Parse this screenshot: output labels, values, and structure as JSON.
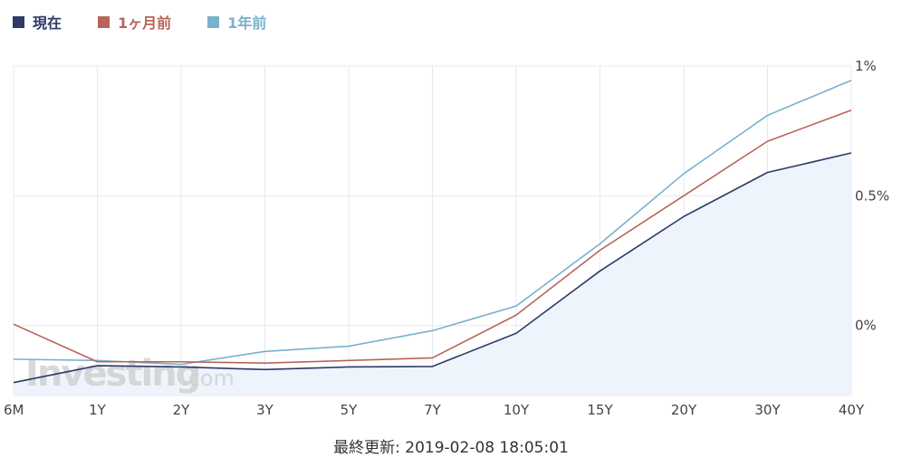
{
  "legend": {
    "items": [
      {
        "label": "現在",
        "color": "#2f3a66"
      },
      {
        "label": "1ヶ月前",
        "color": "#b8645a"
      },
      {
        "label": "1年前",
        "color": "#7ab0cc"
      }
    ]
  },
  "watermark": {
    "brand": "Investing",
    "suffix": ".com"
  },
  "footer": {
    "text": "最終更新: 2019-02-08 18:05:01"
  },
  "chart_data": {
    "type": "line",
    "categories": [
      "6M",
      "1Y",
      "2Y",
      "3Y",
      "5Y",
      "7Y",
      "10Y",
      "15Y",
      "20Y",
      "30Y",
      "40Y"
    ],
    "y_ticks": [
      "1%",
      "0.5%",
      "0%"
    ],
    "ylim": [
      -0.27,
      1.0
    ],
    "grid": true,
    "legend_position": "top-left",
    "series": [
      {
        "name": "現在",
        "color": "#2f3a66",
        "filled": true,
        "fill_color": "#eef4fc",
        "values": [
          -0.22,
          -0.155,
          -0.16,
          -0.17,
          -0.16,
          -0.158,
          -0.03,
          0.21,
          0.42,
          0.59,
          0.665
        ]
      },
      {
        "name": "1ヶ月前",
        "color": "#b8645a",
        "filled": false,
        "values": [
          0.005,
          -0.14,
          -0.14,
          -0.145,
          -0.135,
          -0.125,
          0.04,
          0.29,
          0.5,
          0.71,
          0.83
        ]
      },
      {
        "name": "1年前",
        "color": "#7ab0cc",
        "filled": false,
        "values": [
          -0.13,
          -0.135,
          -0.15,
          -0.1,
          -0.08,
          -0.02,
          0.075,
          0.315,
          0.585,
          0.81,
          0.945
        ]
      }
    ]
  }
}
